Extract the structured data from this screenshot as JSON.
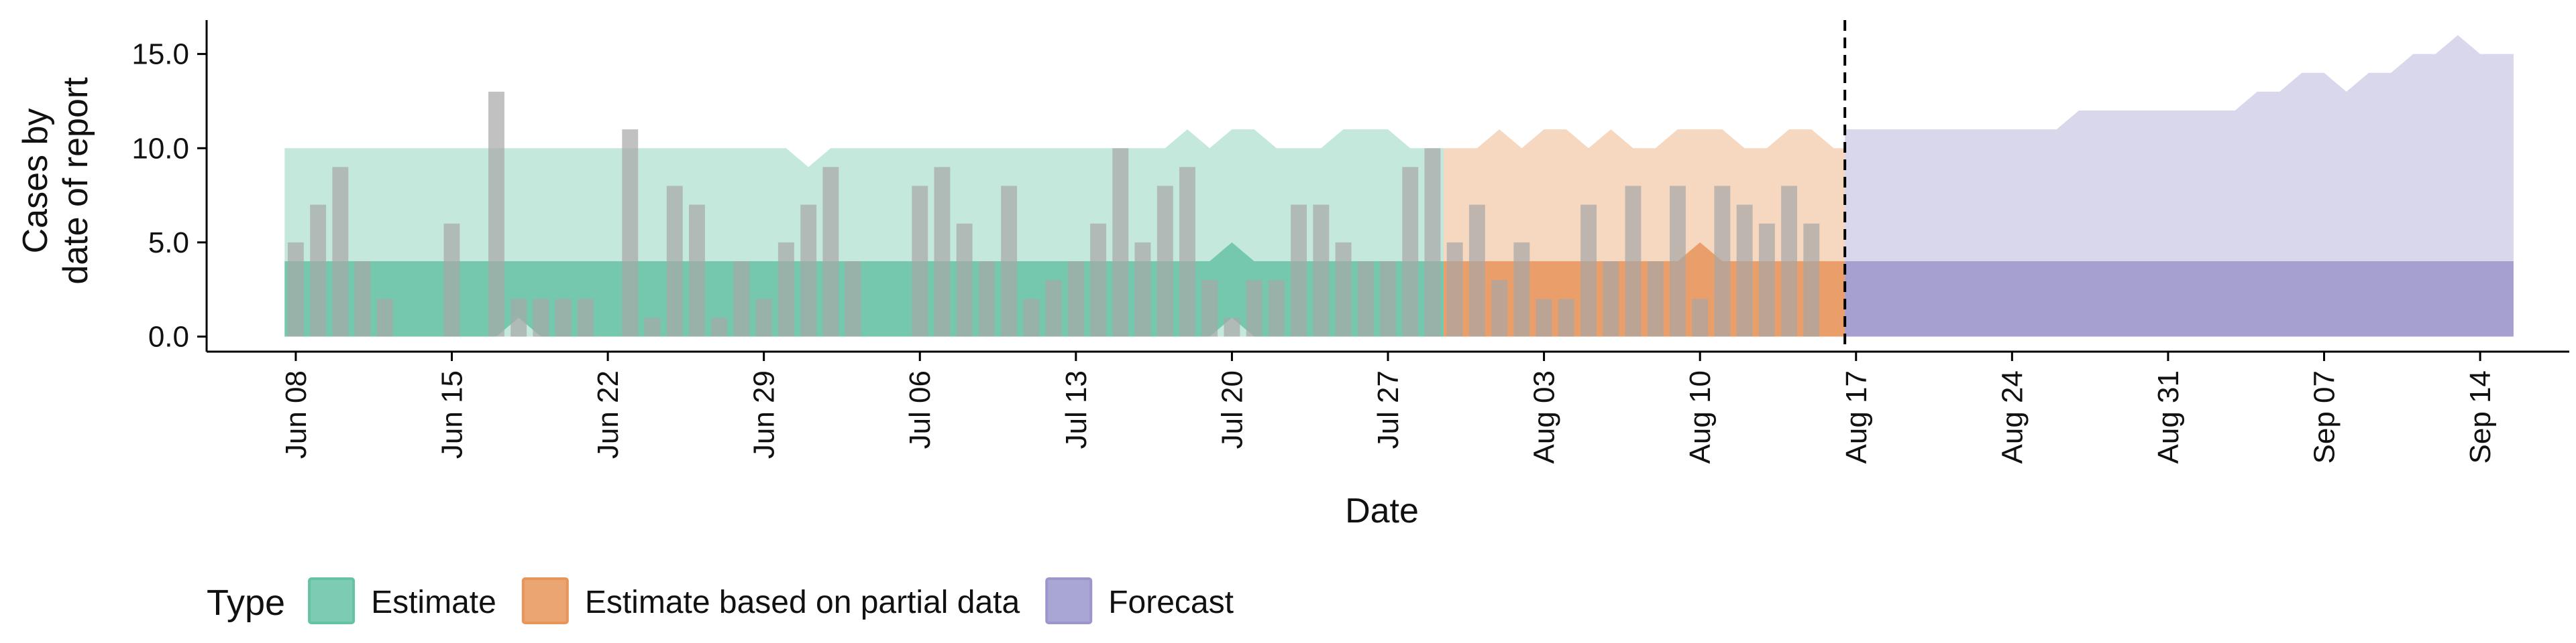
{
  "chart_data": {
    "type": "area",
    "xlabel": "Date",
    "ylabel": [
      "Cases by",
      "date of report"
    ],
    "ylim": [
      -0.8,
      16.8
    ],
    "xlim": [
      "2020-06-04",
      "2020-09-18"
    ],
    "y_ticks": [
      0,
      5,
      10,
      15
    ],
    "y_tick_labels": [
      "0.0",
      "5.0",
      "10.0",
      "15.0"
    ],
    "x_ticks": [
      "2020-06-08",
      "2020-06-15",
      "2020-06-22",
      "2020-06-29",
      "2020-07-06",
      "2020-07-13",
      "2020-07-20",
      "2020-07-27",
      "2020-08-03",
      "2020-08-10",
      "2020-08-17",
      "2020-08-24",
      "2020-08-31",
      "2020-09-07",
      "2020-09-14"
    ],
    "x_tick_labels": [
      "Jun 08",
      "Jun 15",
      "Jun 22",
      "Jun 29",
      "Jul 06",
      "Jul 13",
      "Jul 20",
      "Jul 27",
      "Aug 03",
      "Aug 10",
      "Aug 17",
      "Aug 24",
      "Aug 31",
      "Sep 07",
      "Sep 14"
    ],
    "grid": false,
    "legend": {
      "title": "Type",
      "placement": "bottom-left",
      "entries": [
        {
          "name": "Estimate",
          "color": "#66c2a5"
        },
        {
          "name": "Estimate based on partial data",
          "color": "#e8955a"
        },
        {
          "name": "Forecast",
          "color": "#9b97cb"
        }
      ]
    },
    "reference_line": {
      "x": "2020-08-16",
      "style": "dashed"
    },
    "reported_cases": {
      "color": "#a6a6a6",
      "dates": [
        "2020-06-08",
        "2020-06-09",
        "2020-06-10",
        "2020-06-11",
        "2020-06-12",
        "2020-06-13",
        "2020-06-14",
        "2020-06-15",
        "2020-06-16",
        "2020-06-17",
        "2020-06-18",
        "2020-06-19",
        "2020-06-20",
        "2020-06-21",
        "2020-06-22",
        "2020-06-23",
        "2020-06-24",
        "2020-06-25",
        "2020-06-26",
        "2020-06-27",
        "2020-06-28",
        "2020-06-29",
        "2020-06-30",
        "2020-07-01",
        "2020-07-02",
        "2020-07-03",
        "2020-07-04",
        "2020-07-05",
        "2020-07-06",
        "2020-07-07",
        "2020-07-08",
        "2020-07-09",
        "2020-07-10",
        "2020-07-11",
        "2020-07-12",
        "2020-07-13",
        "2020-07-14",
        "2020-07-15",
        "2020-07-16",
        "2020-07-17",
        "2020-07-18",
        "2020-07-19",
        "2020-07-20",
        "2020-07-21",
        "2020-07-22",
        "2020-07-23",
        "2020-07-24",
        "2020-07-25",
        "2020-07-26",
        "2020-07-27",
        "2020-07-28",
        "2020-07-29",
        "2020-07-30",
        "2020-07-31",
        "2020-08-01",
        "2020-08-02",
        "2020-08-03",
        "2020-08-04",
        "2020-08-05",
        "2020-08-06",
        "2020-08-07",
        "2020-08-08",
        "2020-08-09",
        "2020-08-10",
        "2020-08-11",
        "2020-08-12",
        "2020-08-13",
        "2020-08-14",
        "2020-08-15",
        "2020-08-16"
      ],
      "values": [
        5,
        7,
        9,
        4,
        2,
        0,
        0,
        6,
        0,
        13,
        2,
        2,
        2,
        2,
        0,
        11,
        1,
        8,
        7,
        1,
        4,
        2,
        5,
        7,
        9,
        4,
        0,
        0,
        8,
        9,
        6,
        4,
        8,
        2,
        3,
        4,
        6,
        10,
        5,
        8,
        9,
        3,
        1,
        3,
        3,
        7,
        7,
        5,
        4,
        4,
        9,
        10,
        5,
        7,
        3,
        5,
        2,
        2,
        7,
        4,
        8,
        4,
        8,
        2,
        8,
        7,
        6,
        8,
        6,
        0
      ]
    },
    "series": [
      {
        "name": "Estimate",
        "color": "#66c2a5",
        "x": [
          "2020-06-08",
          "2020-06-09",
          "2020-06-10",
          "2020-06-11",
          "2020-06-12",
          "2020-06-13",
          "2020-06-14",
          "2020-06-15",
          "2020-06-16",
          "2020-06-17",
          "2020-06-18",
          "2020-06-19",
          "2020-06-20",
          "2020-06-21",
          "2020-06-22",
          "2020-06-23",
          "2020-06-24",
          "2020-06-25",
          "2020-06-26",
          "2020-06-27",
          "2020-06-28",
          "2020-06-29",
          "2020-06-30",
          "2020-07-01",
          "2020-07-02",
          "2020-07-03",
          "2020-07-04",
          "2020-07-05",
          "2020-07-06",
          "2020-07-07",
          "2020-07-08",
          "2020-07-09",
          "2020-07-10",
          "2020-07-11",
          "2020-07-12",
          "2020-07-13",
          "2020-07-14",
          "2020-07-15",
          "2020-07-16",
          "2020-07-17",
          "2020-07-18",
          "2020-07-19",
          "2020-07-20",
          "2020-07-21",
          "2020-07-22",
          "2020-07-23",
          "2020-07-24",
          "2020-07-25",
          "2020-07-26",
          "2020-07-27",
          "2020-07-28",
          "2020-07-29"
        ],
        "outer_lower": [
          0,
          0,
          0,
          0,
          0,
          0,
          0,
          0,
          0,
          0,
          0,
          0,
          0,
          0,
          0,
          0,
          0,
          0,
          0,
          0,
          0,
          0,
          0,
          0,
          0,
          0,
          0,
          0,
          0,
          0,
          0,
          0,
          0,
          0,
          0,
          0,
          0,
          0,
          0,
          0,
          0,
          0,
          0,
          0,
          0,
          0,
          0,
          0,
          0,
          0,
          0,
          0
        ],
        "outer_upper": [
          10,
          10,
          10,
          10,
          10,
          10,
          10,
          10,
          10,
          10,
          10,
          10,
          10,
          10,
          10,
          10,
          10,
          10,
          10,
          10,
          10,
          10,
          10,
          9,
          10,
          10,
          10,
          10,
          10,
          10,
          10,
          10,
          10,
          10,
          10,
          10,
          10,
          10,
          10,
          10,
          11,
          10,
          11,
          11,
          10,
          10,
          10,
          11,
          11,
          11,
          10,
          10
        ],
        "inner_lower": [
          0,
          0,
          0,
          0,
          0,
          0,
          0,
          0,
          0,
          0,
          1,
          0,
          0,
          0,
          0,
          0,
          0,
          0,
          0,
          0,
          0,
          0,
          0,
          0,
          0,
          0,
          0,
          0,
          0,
          0,
          0,
          0,
          0,
          0,
          0,
          0,
          0,
          0,
          0,
          0,
          0,
          0,
          1,
          0,
          0,
          0,
          0,
          0,
          0,
          0,
          0,
          0
        ],
        "inner_upper": [
          4,
          4,
          4,
          4,
          4,
          4,
          4,
          4,
          4,
          4,
          4,
          4,
          4,
          4,
          4,
          4,
          4,
          4,
          4,
          4,
          4,
          4,
          4,
          4,
          4,
          4,
          4,
          4,
          4,
          4,
          4,
          4,
          4,
          4,
          4,
          4,
          4,
          4,
          4,
          4,
          4,
          4,
          5,
          4,
          4,
          4,
          4,
          4,
          4,
          4,
          4,
          4
        ]
      },
      {
        "name": "Estimate based on partial data",
        "color": "#e8955a",
        "x": [
          "2020-07-30",
          "2020-07-31",
          "2020-08-01",
          "2020-08-02",
          "2020-08-03",
          "2020-08-04",
          "2020-08-05",
          "2020-08-06",
          "2020-08-07",
          "2020-08-08",
          "2020-08-09",
          "2020-08-10",
          "2020-08-11",
          "2020-08-12",
          "2020-08-13",
          "2020-08-14",
          "2020-08-15",
          "2020-08-16"
        ],
        "outer_lower": [
          0,
          0,
          0,
          0,
          0,
          0,
          0,
          0,
          0,
          0,
          0,
          0,
          0,
          0,
          0,
          0,
          0,
          0
        ],
        "outer_upper": [
          10,
          10,
          11,
          10,
          11,
          11,
          10,
          11,
          10,
          10,
          11,
          11,
          11,
          10,
          10,
          11,
          11,
          10
        ],
        "inner_lower": [
          0,
          0,
          0,
          0,
          0,
          0,
          0,
          0,
          0,
          0,
          0,
          0,
          0,
          0,
          0,
          0,
          0,
          0
        ],
        "inner_upper": [
          4,
          4,
          4,
          4,
          4,
          4,
          4,
          4,
          4,
          4,
          4,
          5,
          4,
          4,
          4,
          4,
          4,
          4
        ]
      },
      {
        "name": "Forecast",
        "color": "#9b97cb",
        "x": [
          "2020-08-17",
          "2020-08-18",
          "2020-08-19",
          "2020-08-20",
          "2020-08-21",
          "2020-08-22",
          "2020-08-23",
          "2020-08-24",
          "2020-08-25",
          "2020-08-26",
          "2020-08-27",
          "2020-08-28",
          "2020-08-29",
          "2020-08-30",
          "2020-08-31",
          "2020-09-01",
          "2020-09-02",
          "2020-09-03",
          "2020-09-04",
          "2020-09-05",
          "2020-09-06",
          "2020-09-07",
          "2020-09-08",
          "2020-09-09",
          "2020-09-10",
          "2020-09-11",
          "2020-09-12",
          "2020-09-13",
          "2020-09-14",
          "2020-09-15"
        ],
        "outer_lower": [
          0,
          0,
          0,
          0,
          0,
          0,
          0,
          0,
          0,
          0,
          0,
          0,
          0,
          0,
          0,
          0,
          0,
          0,
          0,
          0,
          0,
          0,
          0,
          0,
          0,
          0,
          0,
          0,
          0,
          0
        ],
        "outer_upper": [
          11,
          11,
          11,
          11,
          11,
          11,
          11,
          11,
          11,
          11,
          12,
          12,
          12,
          12,
          12,
          12,
          12,
          12,
          13,
          13,
          14,
          14,
          13,
          14,
          14,
          15,
          15,
          16,
          15,
          15
        ],
        "inner_lower": [
          0,
          0,
          0,
          0,
          0,
          0,
          0,
          0,
          0,
          0,
          0,
          0,
          0,
          0,
          0,
          0,
          0,
          0,
          0,
          0,
          0,
          0,
          0,
          0,
          0,
          0,
          0,
          0,
          0,
          0
        ],
        "inner_upper": [
          4,
          4,
          4,
          4,
          4,
          4,
          4,
          4,
          4,
          4,
          4,
          4,
          4,
          4,
          4,
          4,
          4,
          4,
          4,
          4,
          4,
          4,
          4,
          4,
          4,
          4,
          4,
          4,
          4,
          4
        ]
      }
    ]
  }
}
